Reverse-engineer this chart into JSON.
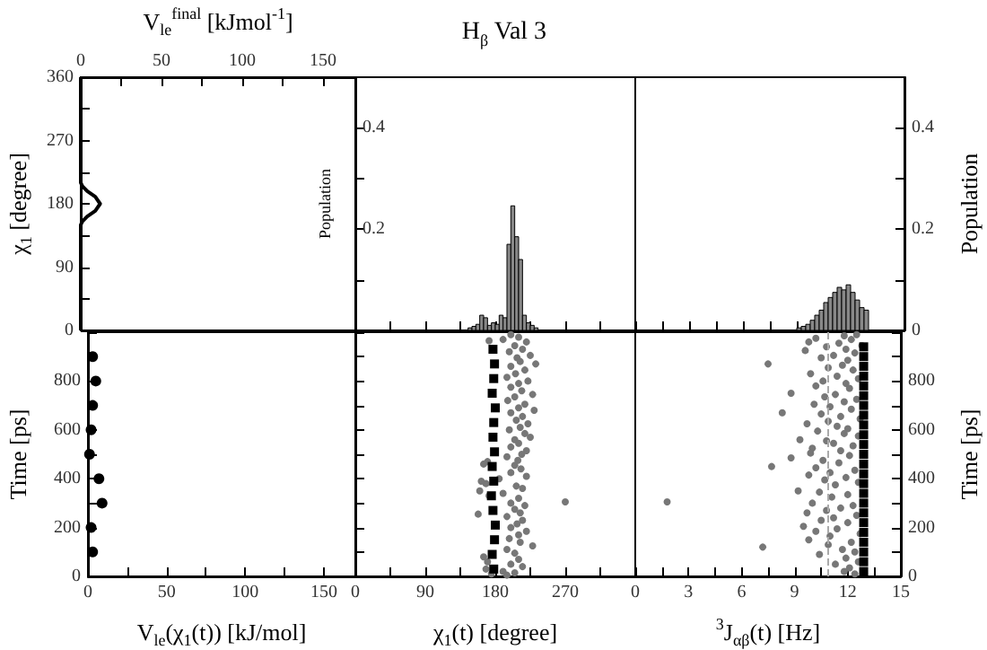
{
  "chart_data": [
    {
      "type": "line",
      "xlabel": "V$_{le}$$^{final}$ [kJmol$^{-1}$]",
      "ylabel": "χ$_{1}$ [degree]",
      "xlim": [
        0,
        170
      ],
      "xticks": [
        0,
        {
          "value": 25,
          "label": null
        },
        50,
        {
          "value": 75,
          "label": null
        },
        100,
        {
          "value": 125,
          "label": null
        },
        150
      ],
      "ylim": [
        0,
        360
      ],
      "yticks": [
        0,
        {
          "value": 45,
          "label": null
        },
        90,
        {
          "value": 135,
          "label": null
        },
        180,
        {
          "value": 225,
          "label": null
        },
        270,
        {
          "value": 315,
          "label": null
        },
        360
      ],
      "series": [
        {
          "color": "#000000",
          "x": [
            0,
            0,
            1,
            4,
            9,
            12,
            9,
            4,
            1,
            0,
            0
          ],
          "values": [
            0,
            150,
            155,
            162,
            170,
            180,
            190,
            198,
            205,
            210,
            360
          ]
        }
      ]
    },
    {
      "type": "histogram",
      "title": "H$_{β}$ Val 3",
      "ylabel": "Population",
      "tick_labels": "y",
      "xlim": [
        0,
        360
      ],
      "xticks": [
        0,
        {
          "value": 45,
          "label": null
        },
        90,
        {
          "value": 135,
          "label": null
        },
        180,
        {
          "value": 225,
          "label": null
        },
        270,
        {
          "value": 315,
          "label": null
        },
        {
          "value": 360,
          "label": null
        }
      ],
      "ylim": [
        0,
        0.5
      ],
      "yticks": [
        {
          "value": 0.1,
          "label": null
        },
        0.2,
        {
          "value": 0.3,
          "label": null
        },
        0.4
      ],
      "color": "#888888",
      "bins": [
        145,
        150,
        155,
        160,
        165,
        170,
        175,
        180,
        185,
        190,
        195,
        200,
        205,
        210,
        215,
        220,
        225,
        230,
        235
      ],
      "values": [
        0.005,
        0.008,
        0.012,
        0.03,
        0.025,
        0.01,
        0.015,
        0.012,
        0.03,
        0.025,
        0.17,
        0.246,
        0.185,
        0.14,
        0.03,
        0.015,
        0.01,
        0.005
      ]
    },
    {
      "type": "histogram",
      "y2label": "Population",
      "tick_labels": "y",
      "xlim": [
        0,
        15
      ],
      "xticks": [
        0,
        {
          "value": 1.5,
          "label": null
        },
        3,
        {
          "value": 4.5,
          "label": null
        },
        6,
        {
          "value": 7.5,
          "label": null
        },
        9,
        {
          "value": 10.5,
          "label": null
        },
        12,
        15
      ],
      "y2lim": [
        0,
        0.5
      ],
      "y2ticks": [
        0,
        {
          "value": 0.1,
          "label": null
        },
        0.2,
        {
          "value": 0.3,
          "label": null
        },
        0.4
      ],
      "bins": [
        9,
        9.25,
        9.5,
        9.75,
        10,
        10.25,
        10.5,
        10.75,
        11,
        11.25,
        11.5,
        11.75,
        12,
        12.25,
        12.5,
        12.75,
        13
      ],
      "series": [
        {
          "axis": "y2",
          "color": "#888888",
          "values": [
            0.005,
            0.008,
            0.012,
            0.02,
            0.03,
            0.04,
            0.055,
            0.065,
            0.075,
            0.085,
            0.08,
            0.09,
            0.075,
            0.06,
            0.045,
            0.04
          ]
        }
      ]
    },
    {
      "type": "scatter",
      "marker": "circle",
      "xlabel": "V$_{le}$(χ$_{1}$(t)) [kJ/mol]",
      "ylabel": "Time [ps]",
      "xlim": [
        0,
        170
      ],
      "xticks": [
        0,
        {
          "value": 25,
          "label": null
        },
        50,
        {
          "value": 75,
          "label": null
        },
        100,
        {
          "value": 125,
          "label": null
        },
        150
      ],
      "ylim": [
        0,
        1000
      ],
      "yticks": [
        0,
        {
          "value": 100,
          "label": null
        },
        200,
        {
          "value": 300,
          "label": null
        },
        400,
        {
          "value": 500,
          "label": null
        },
        600,
        {
          "value": 700,
          "label": null
        },
        800,
        {
          "value": 900,
          "label": null
        },
        {
          "value": 1000,
          "label": null
        }
      ],
      "series": [
        {
          "color": "#000000",
          "x": [
            3,
            2,
            9,
            7,
            1,
            2,
            3,
            5,
            3
          ],
          "values": [
            100,
            200,
            300,
            400,
            500,
            600,
            700,
            800,
            900
          ]
        }
      ]
    },
    {
      "type": "scatter",
      "xlabel": "χ$_{1}$(t) [degree]",
      "tick_labels": "x",
      "xlim": [
        0,
        360
      ],
      "xticks": [
        0,
        {
          "value": 45,
          "label": null
        },
        90,
        {
          "value": 135,
          "label": null
        },
        180,
        {
          "value": 225,
          "label": null
        },
        270,
        {
          "value": 315,
          "label": null
        },
        {
          "value": 360,
          "label": null
        }
      ],
      "ylim": [
        0,
        1000
      ],
      "yticks": [
        0,
        {
          "value": 100,
          "label": null
        },
        200,
        {
          "value": 300,
          "label": null
        },
        400,
        {
          "value": 500,
          "label": null
        },
        600,
        {
          "value": 700,
          "label": null
        },
        800,
        {
          "value": 900,
          "label": null
        },
        {
          "value": 1000,
          "label": null
        }
      ],
      "series": [
        {
          "marker": "circle",
          "color": "#777777",
          "x": [
            200,
            210,
            190,
            220,
            172,
            205,
            215,
            198,
            225,
            208,
            212,
            232,
            200,
            218,
            206,
            195,
            222,
            210,
            200,
            214,
            228,
            205,
            196,
            218,
            210,
            230,
            200,
            215,
            207,
            222,
            212,
            198,
            218,
            225,
            205,
            210,
            200,
            220,
            214,
            195,
            209,
            170,
            165,
            205,
            213,
            200,
            220,
            185,
            162,
            168,
            207,
            215,
            160,
            190,
            172,
            210,
            270,
            200,
            218,
            205,
            212,
            158,
            195,
            215,
            208,
            200,
            220,
            210,
            198,
            212,
            228,
            195,
            205,
            165,
            210,
            170,
            200,
            215,
            168,
            190,
            205,
            175,
            195
          ],
          "values": [
            990,
            980,
            970,
            960,
            965,
            945,
            930,
            920,
            905,
            895,
            880,
            870,
            860,
            845,
            830,
            815,
            800,
            790,
            775,
            760,
            745,
            735,
            720,
            705,
            690,
            680,
            670,
            655,
            640,
            625,
            610,
            600,
            585,
            570,
            560,
            545,
            530,
            515,
            500,
            490,
            475,
            470,
            460,
            455,
            440,
            425,
            410,
            400,
            390,
            380,
            370,
            360,
            350,
            340,
            330,
            320,
            305,
            300,
            290,
            275,
            260,
            255,
            245,
            230,
            215,
            200,
            185,
            170,
            155,
            140,
            125,
            110,
            95,
            80,
            70,
            60,
            50,
            40,
            30,
            20,
            15,
            10,
            5
          ]
        },
        {
          "marker": "square",
          "color": "#000000",
          "x": [
            178,
            176,
            179,
            180,
            177,
            175,
            178,
            176,
            179,
            177,
            178,
            180,
            176,
            178,
            179,
            177
          ],
          "values": [
            30,
            90,
            150,
            210,
            270,
            330,
            390,
            450,
            510,
            570,
            630,
            690,
            750,
            810,
            870,
            930
          ]
        }
      ]
    },
    {
      "type": "scatter",
      "xlabel": "$^{3}$J$_{αβ}$(t) [Hz]",
      "y2label": "Time [ps]",
      "xlim": [
        0,
        15
      ],
      "xticks": [
        0,
        {
          "value": 1.5,
          "label": null
        },
        3,
        {
          "value": 4.5,
          "label": null
        },
        6,
        {
          "value": 7.5,
          "label": null
        },
        9,
        {
          "value": 10.5,
          "label": null
        },
        12,
        {
          "value": 13.5,
          "label": null
        },
        15
      ],
      "y2lim": [
        0,
        1000
      ],
      "y2ticks": [
        0,
        {
          "value": 100,
          "label": null
        },
        200,
        {
          "value": 300,
          "label": null
        },
        400,
        {
          "value": 500,
          "label": null
        },
        600,
        {
          "value": 700,
          "label": null
        },
        800,
        {
          "value": 900,
          "label": null
        },
        {
          "value": 1000,
          "label": null
        }
      ],
      "ref_lines": [
        {
          "axis": "x",
          "value": 10.9,
          "color": "#aaaaaa",
          "line_style": "dashed"
        }
      ],
      "series": [
        {
          "axis": "y2",
          "marker": "circle",
          "color": "#777777",
          "x": [
            12.5,
            11.8,
            10.2,
            12.2,
            9.8,
            11.5,
            12.8,
            10.8,
            11.9,
            9.6,
            12.4,
            11.2,
            10.5,
            12.0,
            7.5,
            11.7,
            10.9,
            12.3,
            9.9,
            11.4,
            12.6,
            10.6,
            11.9,
            10.2,
            12.1,
            8.8,
            11.3,
            10.7,
            12.5,
            11.8,
            10.1,
            11.0,
            12.2,
            8.3,
            10.5,
            11.6,
            12.7,
            10.9,
            9.7,
            11.4,
            12.0,
            10.3,
            11.8,
            12.6,
            9.3,
            10.8,
            11.2,
            12.3,
            10.0,
            11.6,
            9.9,
            12.1,
            8.8,
            10.6,
            11.5,
            7.7,
            10.2,
            12.4,
            11.0,
            9.8,
            11.9,
            10.7,
            12.6,
            11.3,
            9.2,
            10.4,
            12.0,
            11.1,
            1.8,
            10.0,
            12.3,
            11.6,
            10.8,
            9.7,
            12.5,
            11.2,
            10.5,
            12.0,
            9.5,
            11.4,
            10.2,
            12.7,
            11.0,
            9.8,
            12.2,
            10.9,
            7.2,
            11.7,
            12.4,
            10.4,
            11.9,
            12.6,
            11.3,
            12.1,
            11.8,
            12.4
          ],
          "values": [
            990,
            985,
            975,
            970,
            960,
            955,
            945,
            940,
            930,
            925,
            915,
            905,
            895,
            885,
            870,
            865,
            855,
            845,
            830,
            820,
            810,
            800,
            790,
            780,
            770,
            750,
            745,
            735,
            725,
            715,
            705,
            695,
            685,
            670,
            665,
            655,
            645,
            635,
            625,
            615,
            605,
            595,
            585,
            575,
            560,
            555,
            545,
            535,
            525,
            515,
            505,
            495,
            485,
            475,
            465,
            450,
            445,
            435,
            425,
            415,
            405,
            395,
            385,
            375,
            350,
            345,
            335,
            325,
            305,
            300,
            290,
            280,
            270,
            260,
            250,
            240,
            230,
            220,
            205,
            195,
            185,
            175,
            165,
            150,
            140,
            130,
            120,
            110,
            100,
            90,
            75,
            60,
            50,
            35,
            20,
            10
          ]
        },
        {
          "axis": "y2",
          "marker": "square",
          "color": "#000000",
          "x": [
            12.9,
            12.9,
            12.9,
            12.9,
            12.9,
            12.9,
            12.9,
            12.9,
            12.9,
            12.9,
            12.9,
            12.9,
            12.9,
            12.9,
            12.9,
            12.9,
            12.9,
            12.9,
            12.9,
            12.9,
            12.9,
            12.9,
            12.9,
            12.9
          ],
          "values": [
            20,
            60,
            100,
            140,
            180,
            220,
            260,
            300,
            340,
            380,
            420,
            460,
            500,
            540,
            580,
            620,
            660,
            700,
            740,
            780,
            820,
            860,
            900,
            940
          ]
        }
      ]
    }
  ]
}
